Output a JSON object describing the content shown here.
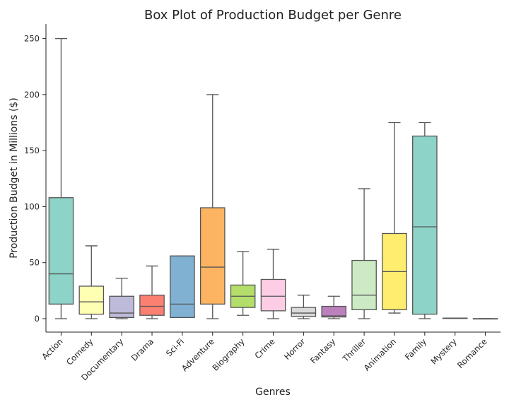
{
  "chart_data": {
    "type": "box",
    "title": "Box Plot of Production Budget per Genre",
    "xlabel": "Genres",
    "ylabel": "Production Budget in Millions ($)",
    "ylim": [
      -12,
      263
    ],
    "yticks": [
      0,
      50,
      100,
      150,
      200,
      250
    ],
    "grid": false,
    "legend": "none",
    "categories": [
      "Action",
      "Comedy",
      "Documentary",
      "Drama",
      "Sci-Fi",
      "Adventure",
      "Biography",
      "Crime",
      "Horror",
      "Fantasy",
      "Thriller",
      "Animation",
      "Family",
      "Mystery",
      "Romance"
    ],
    "boxes": [
      {
        "category": "Action",
        "min": 0,
        "q1": 13,
        "median": 40,
        "q3": 108,
        "max": 250,
        "color": "#8dd3c7"
      },
      {
        "category": "Comedy",
        "min": 0,
        "q1": 4,
        "median": 15,
        "q3": 29,
        "max": 65,
        "color": "#ffffb3"
      },
      {
        "category": "Documentary",
        "min": 0,
        "q1": 1,
        "median": 5,
        "q3": 20,
        "max": 36,
        "color": "#bebada"
      },
      {
        "category": "Drama",
        "min": 0,
        "q1": 3,
        "median": 11,
        "q3": 21,
        "max": 47,
        "color": "#fb8072"
      },
      {
        "category": "Sci-Fi",
        "min": 1,
        "q1": 1,
        "median": 13,
        "q3": 56,
        "max": 56,
        "color": "#80b1d3"
      },
      {
        "category": "Adventure",
        "min": 0,
        "q1": 13,
        "median": 46,
        "q3": 99,
        "max": 200,
        "color": "#fdb462"
      },
      {
        "category": "Biography",
        "min": 3,
        "q1": 10,
        "median": 20,
        "q3": 30,
        "max": 60,
        "color": "#b3de69"
      },
      {
        "category": "Crime",
        "min": 0,
        "q1": 7,
        "median": 20,
        "q3": 35,
        "max": 62,
        "color": "#fccde5"
      },
      {
        "category": "Horror",
        "min": 0,
        "q1": 2,
        "median": 5,
        "q3": 10,
        "max": 21,
        "color": "#d9d9d9"
      },
      {
        "category": "Fantasy",
        "min": 0,
        "q1": 1.5,
        "median": 2.5,
        "q3": 11,
        "max": 20,
        "color": "#bc80bd"
      },
      {
        "category": "Thriller",
        "min": 0,
        "q1": 8,
        "median": 21,
        "q3": 52,
        "max": 116,
        "color": "#ccebc5"
      },
      {
        "category": "Animation",
        "min": 5,
        "q1": 8,
        "median": 42,
        "q3": 76,
        "max": 175,
        "color": "#ffed6f"
      },
      {
        "category": "Family",
        "min": 0,
        "q1": 4,
        "median": 82,
        "q3": 163,
        "max": 175,
        "color": "#8dd3c7"
      },
      {
        "category": "Mystery",
        "min": 0.5,
        "q1": 0.5,
        "median": 0.5,
        "q3": 0.5,
        "max": 0.5,
        "color": "#ffffb3"
      },
      {
        "category": "Romance",
        "min": 0,
        "q1": 0,
        "median": 0,
        "q3": 0,
        "max": 0,
        "color": "#bebada"
      }
    ]
  }
}
